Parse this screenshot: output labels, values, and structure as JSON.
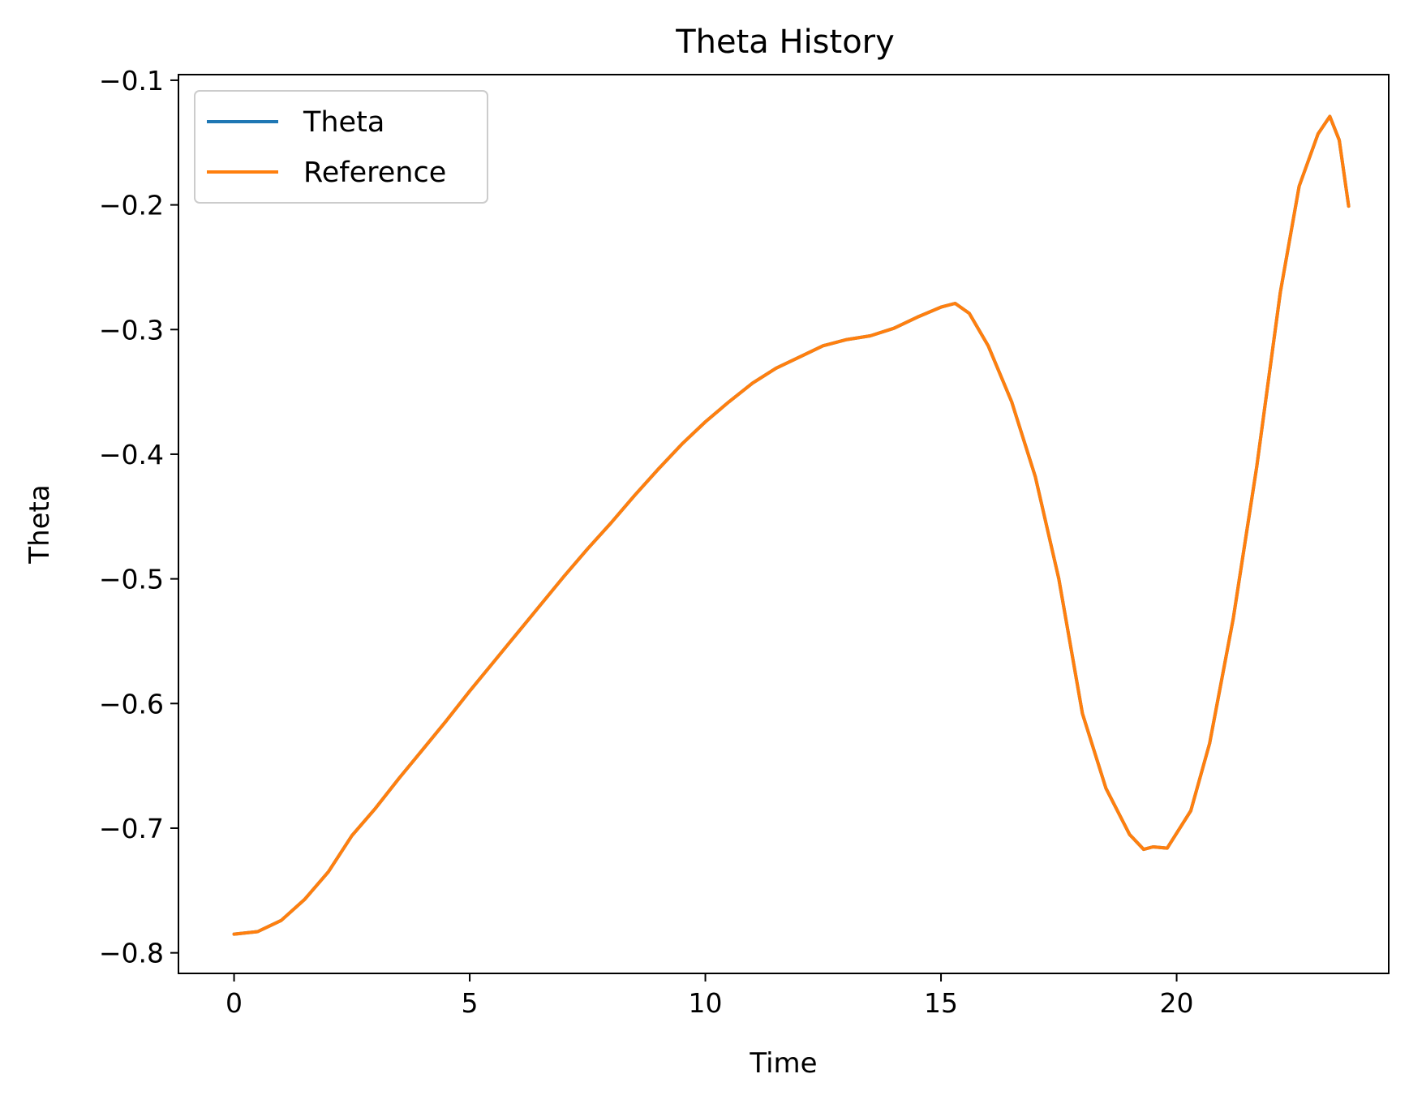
{
  "chart_data": {
    "type": "line",
    "title": "Theta History",
    "xlabel": "Time",
    "ylabel": "Theta",
    "xlim": [
      -1.18,
      24.5
    ],
    "ylim": [
      -0.8165,
      -0.0955
    ],
    "x_ticks": [
      0,
      5,
      10,
      15,
      20
    ],
    "x_tick_labels": [
      "0",
      "5",
      "10",
      "15",
      "20"
    ],
    "y_ticks": [
      -0.8,
      -0.7,
      -0.6,
      -0.5,
      -0.4,
      -0.3,
      -0.2,
      -0.1
    ],
    "y_tick_labels": [
      "−0.8",
      "−0.7",
      "−0.6",
      "−0.5",
      "−0.4",
      "−0.3",
      "−0.2",
      "−0.1"
    ],
    "grid": false,
    "legend_position": "upper-left",
    "series": [
      {
        "name": "Theta",
        "color": "#1f77b4",
        "x": [
          0.0,
          0.5,
          1.0,
          1.5,
          2.0,
          2.5,
          3.0,
          3.5,
          4.0,
          4.5,
          5.0,
          5.5,
          6.0,
          6.5,
          7.0,
          7.5,
          8.0,
          8.5,
          9.0,
          9.5,
          10.0,
          10.5,
          11.0,
          11.5,
          12.0,
          12.5,
          13.0,
          13.5,
          14.0,
          14.5,
          15.0,
          15.3,
          15.6,
          16.0,
          16.5,
          17.0,
          17.5,
          18.0,
          18.5,
          19.0,
          19.3,
          19.5,
          19.8,
          20.3,
          20.7,
          21.2,
          21.7,
          22.2,
          22.6,
          23.0,
          23.25,
          23.45,
          23.65
        ],
        "y": [
          -0.785,
          -0.783,
          -0.774,
          -0.757,
          -0.735,
          -0.706,
          -0.684,
          -0.66,
          -0.637,
          -0.614,
          -0.59,
          -0.567,
          -0.544,
          -0.521,
          -0.498,
          -0.476,
          -0.455,
          -0.433,
          -0.412,
          -0.392,
          -0.374,
          -0.358,
          -0.343,
          -0.331,
          -0.322,
          -0.313,
          -0.308,
          -0.305,
          -0.299,
          -0.29,
          -0.282,
          -0.279,
          -0.287,
          -0.313,
          -0.358,
          -0.418,
          -0.5,
          -0.608,
          -0.668,
          -0.705,
          -0.717,
          -0.715,
          -0.716,
          -0.686,
          -0.632,
          -0.532,
          -0.41,
          -0.27,
          -0.185,
          -0.143,
          -0.129,
          -0.148,
          -0.201
        ]
      },
      {
        "name": "Reference",
        "color": "#ff7f0e",
        "x": [
          0.0,
          0.5,
          1.0,
          1.5,
          2.0,
          2.5,
          3.0,
          3.5,
          4.0,
          4.5,
          5.0,
          5.5,
          6.0,
          6.5,
          7.0,
          7.5,
          8.0,
          8.5,
          9.0,
          9.5,
          10.0,
          10.5,
          11.0,
          11.5,
          12.0,
          12.5,
          13.0,
          13.5,
          14.0,
          14.5,
          15.0,
          15.3,
          15.6,
          16.0,
          16.5,
          17.0,
          17.5,
          18.0,
          18.5,
          19.0,
          19.3,
          19.5,
          19.8,
          20.3,
          20.7,
          21.2,
          21.7,
          22.2,
          22.6,
          23.0,
          23.25,
          23.45,
          23.65
        ],
        "y": [
          -0.785,
          -0.783,
          -0.774,
          -0.757,
          -0.735,
          -0.706,
          -0.684,
          -0.66,
          -0.637,
          -0.614,
          -0.59,
          -0.567,
          -0.544,
          -0.521,
          -0.498,
          -0.476,
          -0.455,
          -0.433,
          -0.412,
          -0.392,
          -0.374,
          -0.358,
          -0.343,
          -0.331,
          -0.322,
          -0.313,
          -0.308,
          -0.305,
          -0.299,
          -0.29,
          -0.282,
          -0.279,
          -0.287,
          -0.313,
          -0.358,
          -0.418,
          -0.5,
          -0.608,
          -0.668,
          -0.705,
          -0.717,
          -0.715,
          -0.716,
          -0.686,
          -0.632,
          -0.532,
          -0.41,
          -0.27,
          -0.185,
          -0.143,
          -0.129,
          -0.148,
          -0.201
        ]
      }
    ]
  }
}
